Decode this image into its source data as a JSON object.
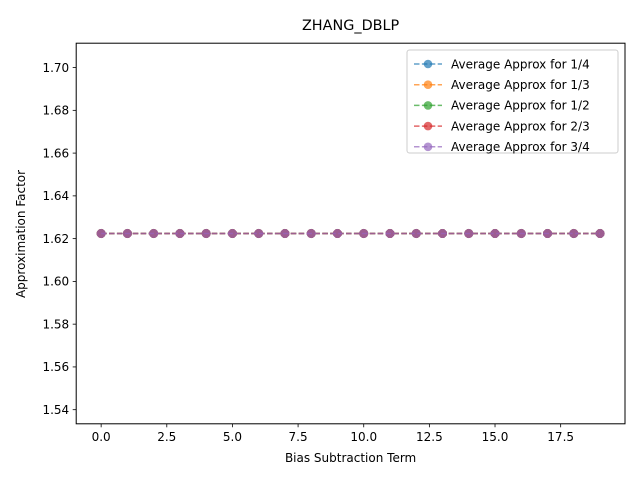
{
  "chart_data": {
    "type": "line",
    "title": "ZHANG_DBLP",
    "xlabel": "Bias Subtraction Term",
    "ylabel": "Approximation Factor",
    "xlim": [
      -0.95,
      19.95
    ],
    "ylim": [
      1.5334,
      1.7114
    ],
    "xticks": [
      0.0,
      2.5,
      5.0,
      7.5,
      10.0,
      12.5,
      15.0,
      17.5
    ],
    "xtick_labels": [
      "0.0",
      "2.5",
      "5.0",
      "7.5",
      "10.0",
      "12.5",
      "15.0",
      "17.5"
    ],
    "yticks": [
      1.54,
      1.56,
      1.58,
      1.6,
      1.62,
      1.64,
      1.66,
      1.68,
      1.7
    ],
    "ytick_labels": [
      "1.54",
      "1.56",
      "1.58",
      "1.60",
      "1.62",
      "1.64",
      "1.66",
      "1.68",
      "1.70"
    ],
    "grid": false,
    "legend_position": "top-right",
    "x": [
      0,
      1,
      2,
      3,
      4,
      5,
      6,
      7,
      8,
      9,
      10,
      11,
      12,
      13,
      14,
      15,
      16,
      17,
      18,
      19
    ],
    "series": [
      {
        "name": "Average Approx for 1/4",
        "color": "#1f77b4",
        "values": [
          1.6224,
          1.6224,
          1.6224,
          1.6224,
          1.6224,
          1.6224,
          1.6224,
          1.6224,
          1.6224,
          1.6224,
          1.6224,
          1.6224,
          1.6224,
          1.6224,
          1.6224,
          1.6224,
          1.6224,
          1.6224,
          1.6224,
          1.6224
        ]
      },
      {
        "name": "Average Approx for 1/3",
        "color": "#ff7f0e",
        "values": [
          1.6224,
          1.6224,
          1.6224,
          1.6224,
          1.6224,
          1.6224,
          1.6224,
          1.6224,
          1.6224,
          1.6224,
          1.6224,
          1.6224,
          1.6224,
          1.6224,
          1.6224,
          1.6224,
          1.6224,
          1.6224,
          1.6224,
          1.6224
        ]
      },
      {
        "name": "Average Approx for 1/2",
        "color": "#2ca02c",
        "values": [
          1.6224,
          1.6224,
          1.6224,
          1.6224,
          1.6224,
          1.6224,
          1.6224,
          1.6224,
          1.6224,
          1.6224,
          1.6224,
          1.6224,
          1.6224,
          1.6224,
          1.6224,
          1.6224,
          1.6224,
          1.6224,
          1.6224,
          1.6224
        ]
      },
      {
        "name": "Average Approx for 2/3",
        "color": "#d62728",
        "values": [
          1.6224,
          1.6224,
          1.6224,
          1.6224,
          1.6224,
          1.6224,
          1.6224,
          1.6224,
          1.6224,
          1.6224,
          1.6224,
          1.6224,
          1.6224,
          1.6224,
          1.6224,
          1.6224,
          1.6224,
          1.6224,
          1.6224,
          1.6224
        ]
      },
      {
        "name": "Average Approx for 3/4",
        "color": "#9467bd",
        "values": [
          1.6224,
          1.6224,
          1.6224,
          1.6224,
          1.6224,
          1.6224,
          1.6224,
          1.6224,
          1.6224,
          1.6224,
          1.6224,
          1.6224,
          1.6224,
          1.6224,
          1.6224,
          1.6224,
          1.6224,
          1.6224,
          1.6224,
          1.6224
        ]
      }
    ]
  }
}
